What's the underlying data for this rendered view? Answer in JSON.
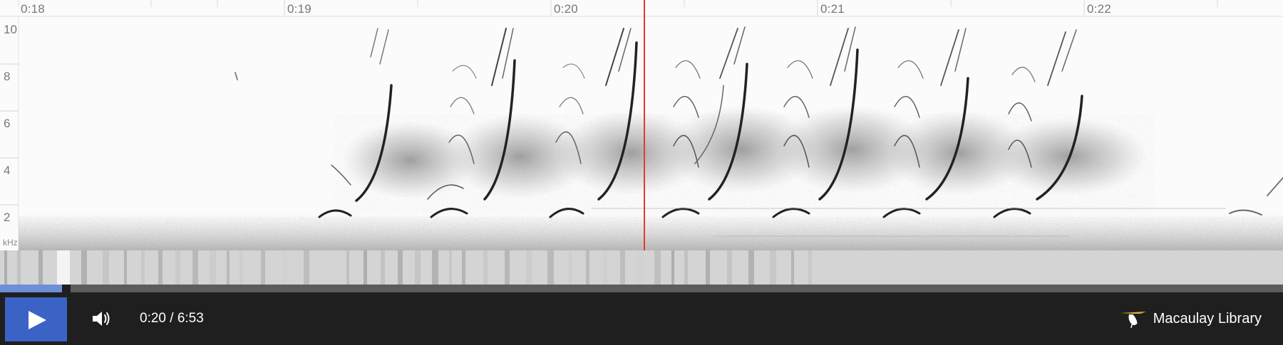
{
  "player": {
    "time_axis": {
      "labels": [
        "0:18",
        "0:19",
        "0:20",
        "0:21",
        "0:22"
      ]
    },
    "frequency_axis": {
      "ticks": [
        "10",
        "8",
        "6",
        "4",
        "2"
      ],
      "unit": "kHz"
    },
    "playback": {
      "current_time": "0:20",
      "duration": "6:53",
      "display": "0:20 / 6:53",
      "progress_fraction": 0.0484
    },
    "controls": {
      "play_icon": "play-icon",
      "volume_icon": "volume-icon"
    },
    "branding": {
      "name": "Macaulay Library",
      "logo_icon": "bird-logo-icon"
    },
    "colors": {
      "accent": "#3a63c5",
      "progress": "#6d8fd8",
      "playhead": "#e23a2c",
      "control_bar": "#1f1f1f"
    }
  }
}
